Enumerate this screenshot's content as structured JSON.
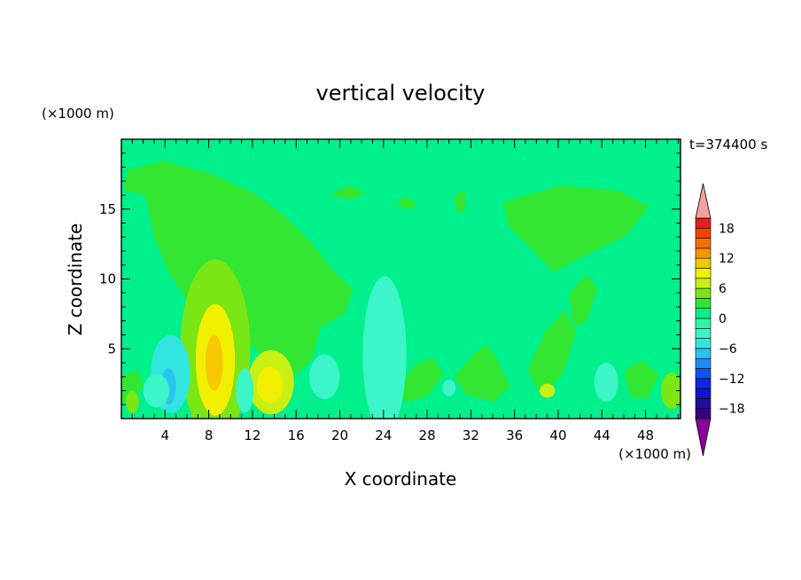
{
  "chart_data": {
    "type": "heatmap",
    "title": "vertical velocity",
    "xlabel": "X coordinate",
    "ylabel": "Z coordinate",
    "x_unit": "(×1000 m)",
    "y_unit": "(×1000 m)",
    "time_label": "t=374400 s",
    "xlim": [
      0,
      51.2
    ],
    "ylim": [
      0,
      20
    ],
    "x_ticks": [
      "4",
      "8",
      "12",
      "16",
      "20",
      "24",
      "28",
      "32",
      "36",
      "40",
      "44",
      "48"
    ],
    "x_tick_values": [
      4,
      8,
      12,
      16,
      20,
      24,
      28,
      32,
      36,
      40,
      44,
      48
    ],
    "y_ticks": [
      "5",
      "10",
      "15"
    ],
    "y_tick_values": [
      5,
      10,
      15
    ],
    "colorbar": {
      "levels": [
        -20,
        -18,
        -16,
        -14,
        -12,
        -10,
        -8,
        -6,
        -4,
        -2,
        0,
        2,
        4,
        6,
        8,
        10,
        12,
        14,
        16,
        18,
        20
      ],
      "tick_labels": [
        "18",
        "12",
        "6",
        "0",
        "−6",
        "−12",
        "−18"
      ],
      "tick_values": [
        18,
        12,
        6,
        0,
        -6,
        -12,
        -18
      ],
      "colors": [
        "#3a0080",
        "#1f0f9e",
        "#1414c8",
        "#0a28e6",
        "#0f55f0",
        "#1e8cf5",
        "#28c3f0",
        "#32e6e0",
        "#3cf5c8",
        "#2ef5a0",
        "#00f08c",
        "#32e632",
        "#7ae614",
        "#c8f014",
        "#f0f000",
        "#f5c800",
        "#f59600",
        "#f56e00",
        "#f54100",
        "#e61e1e",
        "#d20a28"
      ],
      "low_arrow_color": "#8c00a0",
      "high_arrow_color": "#f5a0a0"
    },
    "background_value": 1,
    "features": [
      {
        "x": 8.6,
        "z": 5.0,
        "rx": 3.2,
        "rz": 6.4,
        "v": 5
      },
      {
        "x": 8.6,
        "z": 4.2,
        "rx": 1.8,
        "rz": 4.0,
        "v": 8
      },
      {
        "x": 8.5,
        "z": 4.0,
        "rx": 0.8,
        "rz": 2.0,
        "v": 11
      },
      {
        "x": 13.7,
        "z": 2.6,
        "rx": 2.1,
        "rz": 2.3,
        "v": 6
      },
      {
        "x": 13.6,
        "z": 2.4,
        "rx": 1.2,
        "rz": 1.3,
        "v": 8
      },
      {
        "x": 4.5,
        "z": 3.2,
        "rx": 1.8,
        "rz": 2.8,
        "v": -5
      },
      {
        "x": 4.3,
        "z": 2.3,
        "rx": 0.7,
        "rz": 1.3,
        "v": -8
      },
      {
        "x": 11.3,
        "z": 2.0,
        "rx": 0.8,
        "rz": 1.6,
        "v": -4
      },
      {
        "x": 24.1,
        "z": 4.6,
        "rx": 2.0,
        "rz": 5.6,
        "v": -3
      },
      {
        "x": 18.6,
        "z": 3.0,
        "rx": 1.4,
        "rz": 1.6,
        "v": -3
      },
      {
        "x": 30.0,
        "z": 2.2,
        "rx": 0.6,
        "rz": 0.6,
        "v": -3
      },
      {
        "x": 44.4,
        "z": 2.6,
        "rx": 1.1,
        "rz": 1.4,
        "v": -3
      },
      {
        "x": 50.4,
        "z": 2.0,
        "rx": 1.0,
        "rz": 1.3,
        "v": 4
      },
      {
        "x": 3.2,
        "z": 2.0,
        "rx": 1.2,
        "rz": 1.2,
        "v": -3
      },
      {
        "x": 39.0,
        "z": 2.0,
        "rx": 0.7,
        "rz": 0.5,
        "v": 6
      },
      {
        "x": 1.0,
        "z": 1.2,
        "rx": 0.6,
        "rz": 0.8,
        "v": 5
      }
    ],
    "positive_regions": [
      {
        "v": 2,
        "outline": [
          [
            2.0,
            16.8
          ],
          [
            5.0,
            18.2
          ],
          [
            8.0,
            17.6
          ],
          [
            12.0,
            16.2
          ],
          [
            15.0,
            14.5
          ],
          [
            17.5,
            12.5
          ],
          [
            19.5,
            10.5
          ],
          [
            21.2,
            9.3
          ],
          [
            20.4,
            7.5
          ],
          [
            18.2,
            6.5
          ],
          [
            17.4,
            4.2
          ],
          [
            15.5,
            2.8
          ],
          [
            14.0,
            3.5
          ],
          [
            12.5,
            4.8
          ],
          [
            10.8,
            6.2
          ],
          [
            7.0,
            5.8
          ],
          [
            6.0,
            8.5
          ],
          [
            4.3,
            10.5
          ],
          [
            3.0,
            13.0
          ]
        ]
      },
      {
        "v": 2,
        "outline": [
          [
            0.2,
            16.4
          ],
          [
            0.6,
            17.8
          ],
          [
            4.0,
            18.5
          ],
          [
            6.2,
            17.8
          ],
          [
            5.6,
            16.4
          ],
          [
            2.0,
            16.0
          ]
        ]
      },
      {
        "v": 2,
        "outline": [
          [
            35.0,
            15.5
          ],
          [
            40.2,
            16.7
          ],
          [
            45.6,
            16.3
          ],
          [
            48.3,
            15.2
          ],
          [
            46.2,
            13.1
          ],
          [
            42.0,
            11.5
          ],
          [
            39.6,
            10.5
          ],
          [
            37.1,
            12.5
          ],
          [
            35.4,
            13.8
          ]
        ]
      },
      {
        "v": 2,
        "outline": [
          [
            30.5,
            3.0
          ],
          [
            32.2,
            4.6
          ],
          [
            33.4,
            5.3
          ],
          [
            34.3,
            4.4
          ],
          [
            35.6,
            2.3
          ],
          [
            34.1,
            1.2
          ],
          [
            31.6,
            1.7
          ]
        ]
      },
      {
        "v": 2,
        "outline": [
          [
            25.0,
            2.0
          ],
          [
            26.8,
            3.8
          ],
          [
            28.5,
            4.4
          ],
          [
            29.5,
            3.2
          ],
          [
            28.0,
            1.6
          ],
          [
            26.1,
            1.2
          ]
        ]
      },
      {
        "v": 2,
        "outline": [
          [
            37.2,
            3.5
          ],
          [
            38.8,
            6.2
          ],
          [
            40.6,
            7.8
          ],
          [
            41.6,
            6.1
          ],
          [
            40.4,
            3.2
          ],
          [
            38.5,
            1.5
          ]
        ]
      },
      {
        "v": 2,
        "outline": [
          [
            41.0,
            9.0
          ],
          [
            42.6,
            10.3
          ],
          [
            43.6,
            9.3
          ],
          [
            42.6,
            7.0
          ],
          [
            41.4,
            6.5
          ]
        ]
      },
      {
        "v": 2,
        "outline": [
          [
            30.4,
            15.8
          ],
          [
            31.4,
            16.5
          ],
          [
            31.6,
            15.1
          ],
          [
            30.9,
            14.6
          ]
        ]
      },
      {
        "v": 2,
        "outline": [
          [
            19.0,
            16.0
          ],
          [
            20.8,
            16.7
          ],
          [
            22.4,
            16.2
          ],
          [
            21.0,
            15.7
          ]
        ]
      },
      {
        "v": 2,
        "outline": [
          [
            25.1,
            15.5
          ],
          [
            26.2,
            15.9
          ],
          [
            27.2,
            15.2
          ],
          [
            26.0,
            15.0
          ]
        ]
      },
      {
        "v": 2,
        "outline": [
          [
            0.0,
            3.0
          ],
          [
            1.5,
            3.5
          ],
          [
            2.0,
            2.4
          ],
          [
            0.8,
            1.0
          ],
          [
            0.0,
            1.3
          ]
        ]
      },
      {
        "v": 2,
        "outline": [
          [
            46.0,
            3.4
          ],
          [
            47.6,
            4.2
          ],
          [
            49.2,
            3.2
          ],
          [
            48.2,
            1.4
          ],
          [
            46.6,
            1.6
          ]
        ]
      }
    ]
  }
}
